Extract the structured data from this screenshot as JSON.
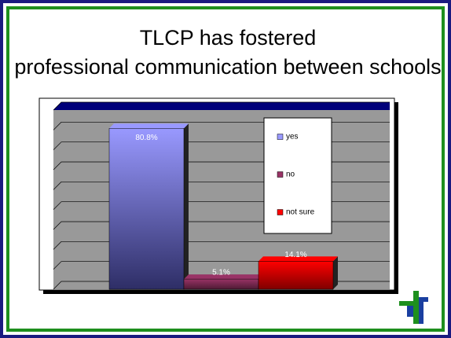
{
  "chart_data": {
    "type": "bar",
    "title": "TLCP has fostered professional communication between schools",
    "categories": [
      "yes",
      "no",
      "not sure"
    ],
    "values": [
      80.8,
      5.1,
      14.1
    ],
    "value_labels": [
      "80.8%",
      "5.1%",
      "14.1%"
    ],
    "colors": [
      "#9999ff",
      "#993366",
      "#ff0000"
    ],
    "ylim": [
      0,
      90
    ],
    "yticks": [
      0,
      10,
      20,
      30,
      40,
      50,
      60,
      70,
      80,
      90
    ],
    "grid": true,
    "legend": "right"
  }
}
